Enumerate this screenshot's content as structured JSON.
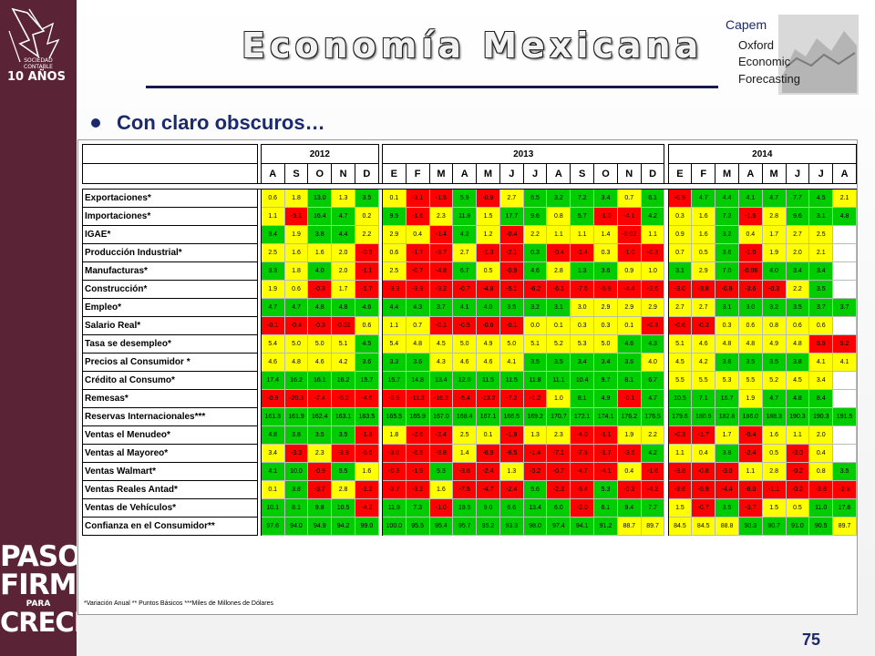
{
  "slide": {
    "title": "Economía Mexicana",
    "bullet": "Con claro obscuros…",
    "page_number": "75",
    "footnote": "*Variación Anual ** Puntos Básicos ***Miles de Millones de Dólares"
  },
  "sidebar": {
    "top_logo_text": [
      "SOCIEDAD",
      "CONTABLE",
      "10 AÑOS"
    ],
    "brand_lines": [
      "PASOS",
      "FIRMES",
      "PARA",
      "CRECER"
    ]
  },
  "partner_logo": {
    "lines": [
      "Capem",
      "Oxford",
      "Economic",
      "Forecasting"
    ]
  },
  "colors": {
    "green": "#00cc00",
    "yellow": "#ffff00",
    "red": "#ff0000",
    "sidebar": "#5a2436",
    "title_text": "#1a2a6c"
  },
  "table": {
    "years": [
      {
        "label": "2012",
        "span": 5
      },
      {
        "label": "2013",
        "span": 12
      },
      {
        "label": "2014",
        "span": 8
      }
    ],
    "months_2012": [
      "A",
      "S",
      "O",
      "N",
      "D"
    ],
    "months_2013": [
      "E",
      "F",
      "M",
      "A",
      "M",
      "J",
      "J",
      "A",
      "S",
      "O",
      "N",
      "D"
    ],
    "months_2014": [
      "E",
      "F",
      "M",
      "A",
      "M",
      "J",
      "J",
      "A"
    ],
    "rows": [
      {
        "label": "Exportaciones*",
        "values": [
          "0.6",
          "1.8",
          "13.0",
          "1.3",
          "3.5",
          "0.1",
          "-3.1",
          "-1.5",
          "5.9",
          "-0.9",
          "2.7",
          "6.5",
          "3.2",
          "7.2",
          "3.4",
          "0.7",
          "6.1",
          "-0.9",
          "4.7",
          "4.4",
          "4.1",
          "4.7",
          "7.7",
          "4.5",
          "2.1"
        ],
        "colors": [
          "y",
          "y",
          "g",
          "y",
          "g",
          "y",
          "r",
          "r",
          "g",
          "r",
          "y",
          "g",
          "g",
          "g",
          "g",
          "y",
          "g",
          "r",
          "g",
          "g",
          "g",
          "g",
          "g",
          "g",
          "y"
        ]
      },
      {
        "label": "Importaciones*",
        "values": [
          "1.1",
          "-5.1",
          "16.4",
          "4.7",
          "0.2",
          "9.5",
          "-1.6",
          "2.3",
          "11.8",
          "1.5",
          "17.7",
          "9.6",
          "0.8",
          "5.7",
          "-1.0",
          "-4.1",
          "4.2",
          "0.3",
          "1.6",
          "7.2",
          "-1.5",
          "2.8",
          "9.6",
          "3.1",
          "4.8"
        ],
        "colors": [
          "y",
          "r",
          "g",
          "g",
          "y",
          "g",
          "r",
          "y",
          "g",
          "y",
          "g",
          "g",
          "y",
          "g",
          "r",
          "r",
          "g",
          "y",
          "y",
          "g",
          "r",
          "y",
          "g",
          "g",
          "g"
        ]
      },
      {
        "label": "IGAE*",
        "values": [
          "3.4",
          "1.9",
          "3.8",
          "4.4",
          "2.2",
          "2.9",
          "0.4",
          "-1.4",
          "4.2",
          "1.2",
          "-0.4",
          "2.2",
          "1.1",
          "1.1",
          "1.4",
          "-0.02",
          "1.1",
          "0.9",
          "1.6",
          "3.2",
          "0.4",
          "1.7",
          "2.7",
          "2.5",
          ""
        ],
        "colors": [
          "g",
          "y",
          "g",
          "g",
          "y",
          "y",
          "y",
          "r",
          "g",
          "y",
          "r",
          "y",
          "y",
          "y",
          "y",
          "r",
          "y",
          "y",
          "y",
          "g",
          "y",
          "y",
          "y",
          "y",
          "w"
        ]
      },
      {
        "label": "Producción Industrial*",
        "values": [
          "2.5",
          "1.6",
          "1.6",
          "2.0",
          "-0.9",
          "0.6",
          "-1.7",
          "-3.7",
          "2.7",
          "-1.3",
          "-2.1",
          "0.3",
          "-0.4",
          "-1.4",
          "0.3",
          "-1.0",
          "-0.3",
          "0.7",
          "0.5",
          "3.6",
          "-1.0",
          "1.9",
          "2.0",
          "2.1",
          ""
        ],
        "colors": [
          "y",
          "y",
          "y",
          "y",
          "r",
          "y",
          "r",
          "r",
          "y",
          "r",
          "r",
          "g",
          "r",
          "r",
          "y",
          "r",
          "r",
          "y",
          "y",
          "g",
          "r",
          "y",
          "y",
          "y",
          "w"
        ]
      },
      {
        "label": "Manufacturas*",
        "values": [
          "3.3",
          "1.8",
          "4.0",
          "2.0",
          "-1.1",
          "2.5",
          "-0.7",
          "-4.8",
          "6.7",
          "0.5",
          "-0.9",
          "4.6",
          "2.8",
          "1.3",
          "3.6",
          "0.9",
          "1.0",
          "3.1",
          "2.9",
          "7.0",
          "-0.06",
          "4.0",
          "3.4",
          "3.4",
          ""
        ],
        "colors": [
          "g",
          "y",
          "g",
          "y",
          "r",
          "y",
          "r",
          "r",
          "g",
          "y",
          "r",
          "g",
          "y",
          "g",
          "g",
          "y",
          "y",
          "g",
          "y",
          "g",
          "r",
          "g",
          "g",
          "g",
          "w"
        ]
      },
      {
        "label": "Construcción*",
        "values": [
          "1.9",
          "0.6",
          "-0.3",
          "1.7",
          "-1.7",
          "-3.3",
          "-3.3",
          "-3.2",
          "-0.7",
          "-4.8",
          "-5.1",
          "-6.2",
          "-6.1",
          "-7.6",
          "-5.9",
          "-4.4",
          "-2.5",
          "-3.0",
          "-3.8",
          "-0.9",
          "-3.6",
          "-0.3",
          "2.2",
          "3.5",
          ""
        ],
        "colors": [
          "y",
          "y",
          "r",
          "y",
          "r",
          "r",
          "r",
          "r",
          "r",
          "r",
          "r",
          "r",
          "r",
          "r",
          "r",
          "r",
          "r",
          "r",
          "r",
          "r",
          "r",
          "r",
          "y",
          "g",
          "w"
        ]
      },
      {
        "label": "Empleo*",
        "values": [
          "4.7",
          "4.7",
          "4.8",
          "4.8",
          "4.6",
          "4.4",
          "4.3",
          "3.7",
          "4.1",
          "4.0",
          "3.5",
          "3.2",
          "3.1",
          "3.0",
          "2.9",
          "2.9",
          "2.9",
          "2.7",
          "2.7",
          "3.1",
          "3.0",
          "3.2",
          "3.5",
          "3.7",
          "3.7"
        ],
        "colors": [
          "g",
          "g",
          "g",
          "g",
          "g",
          "g",
          "g",
          "g",
          "g",
          "g",
          "g",
          "g",
          "g",
          "y",
          "y",
          "y",
          "y",
          "y",
          "y",
          "g",
          "g",
          "g",
          "g",
          "g",
          "g"
        ]
      },
      {
        "label": "Salario Real*",
        "values": [
          "-0.1",
          "-0.4",
          "-0.3",
          "-0.02",
          "0.6",
          "1.1",
          "0.7",
          "-0.1",
          "-0.5",
          "-0.6",
          "-0.1",
          "0.0",
          "0.1",
          "0.3",
          "0.3",
          "0.1",
          "-0.3",
          "-0.6",
          "-0.3",
          "0.3",
          "0.6",
          "0.8",
          "0.6",
          "0.6",
          ""
        ],
        "colors": [
          "r",
          "r",
          "r",
          "r",
          "y",
          "y",
          "y",
          "r",
          "r",
          "r",
          "r",
          "y",
          "y",
          "y",
          "y",
          "y",
          "r",
          "r",
          "r",
          "y",
          "y",
          "y",
          "y",
          "y",
          "w"
        ]
      },
      {
        "label": "Tasa se desempleo*",
        "values": [
          "5.4",
          "5.0",
          "5.0",
          "5.1",
          "4.5",
          "5.4",
          "4.8",
          "4.5",
          "5.0",
          "4.9",
          "5.0",
          "5.1",
          "5.2",
          "5.3",
          "5.0",
          "4.6",
          "4.3",
          "5.1",
          "4.6",
          "4.8",
          "4.8",
          "4.9",
          "4.8",
          "5.5",
          "5.2"
        ],
        "colors": [
          "y",
          "y",
          "y",
          "y",
          "g",
          "y",
          "y",
          "y",
          "y",
          "y",
          "y",
          "y",
          "y",
          "y",
          "y",
          "g",
          "g",
          "y",
          "y",
          "y",
          "y",
          "y",
          "y",
          "r",
          "r"
        ]
      },
      {
        "label": "Precios al Consumidor *",
        "values": [
          "4.6",
          "4.8",
          "4.6",
          "4.2",
          "3.6",
          "3.3",
          "3.6",
          "4.3",
          "4.6",
          "4.6",
          "4.1",
          "3.5",
          "3.5",
          "3.4",
          "3.4",
          "3.6",
          "4.0",
          "4.5",
          "4.2",
          "3.8",
          "3.5",
          "3.5",
          "3.8",
          "4.1",
          "4.1"
        ],
        "colors": [
          "y",
          "y",
          "y",
          "y",
          "g",
          "g",
          "g",
          "y",
          "y",
          "y",
          "y",
          "g",
          "g",
          "g",
          "g",
          "g",
          "y",
          "y",
          "y",
          "g",
          "g",
          "g",
          "g",
          "y",
          "y"
        ]
      },
      {
        "label": "Crédito al Consumo*",
        "values": [
          "17.4",
          "16.2",
          "16.1",
          "16.2",
          "15.7",
          "15.7",
          "14.8",
          "13.4",
          "12.0",
          "11.5",
          "11.5",
          "11.8",
          "11.1",
          "10.4",
          "9.7",
          "8.1",
          "6.7",
          "5.5",
          "5.5",
          "5.3",
          "5.5",
          "5.2",
          "4.5",
          "3.4",
          ""
        ],
        "colors": [
          "g",
          "g",
          "g",
          "g",
          "g",
          "g",
          "g",
          "g",
          "g",
          "g",
          "g",
          "g",
          "g",
          "g",
          "g",
          "g",
          "g",
          "y",
          "y",
          "y",
          "y",
          "y",
          "y",
          "y",
          "w"
        ]
      },
      {
        "label": "Remesas*",
        "values": [
          "-0.9",
          "-20.3",
          "-7.4",
          "-5.2",
          "-4.6",
          "-2.9",
          "-11.2",
          "-16.2",
          "-5.4",
          "-13.2",
          "-7.2",
          "-1.2",
          "1.0",
          "8.1",
          "4.9",
          "-0.1",
          "4.7",
          "10.5",
          "7.1",
          "16.7",
          "1.9",
          "4.7",
          "4.8",
          "8.4",
          ""
        ],
        "colors": [
          "r",
          "r",
          "r",
          "r",
          "r",
          "r",
          "r",
          "r",
          "r",
          "r",
          "r",
          "r",
          "y",
          "g",
          "g",
          "r",
          "g",
          "g",
          "g",
          "g",
          "y",
          "g",
          "g",
          "g",
          "w"
        ]
      },
      {
        "label": "Reservas Internacionales***",
        "values": [
          "161.3",
          "161.9",
          "162.4",
          "163.1",
          "163.5",
          "165.5",
          "165.9",
          "167.0",
          "168.4",
          "167.1",
          "166.5",
          "169.2",
          "170.7",
          "172.1",
          "174.1",
          "176.2",
          "176.5",
          "179.6",
          "180.9",
          "182.8",
          "186.0",
          "188.3",
          "190.3",
          "190.3",
          "191.5"
        ],
        "colors": [
          "g",
          "g",
          "g",
          "g",
          "g",
          "g",
          "g",
          "g",
          "g",
          "g",
          "g",
          "g",
          "g",
          "g",
          "g",
          "g",
          "g",
          "g",
          "g",
          "g",
          "g",
          "g",
          "g",
          "g",
          "g"
        ]
      },
      {
        "label": "Ventas el Menudeo*",
        "values": [
          "4.8",
          "3.8",
          "3.5",
          "3.5",
          "-1.8",
          "1.8",
          "-2.6",
          "-2.4",
          "2.5",
          "0.1",
          "-1.9",
          "1.3",
          "2.3",
          "-4.0",
          "-1.1",
          "1.9",
          "2.2",
          "-0.3",
          "-1.7",
          "1.7",
          "-0.4",
          "1.6",
          "1.1",
          "2.0",
          ""
        ],
        "colors": [
          "g",
          "g",
          "g",
          "g",
          "r",
          "y",
          "r",
          "r",
          "y",
          "y",
          "r",
          "y",
          "y",
          "r",
          "r",
          "y",
          "y",
          "r",
          "r",
          "y",
          "r",
          "y",
          "y",
          "y",
          "w"
        ]
      },
      {
        "label": "Ventas al Mayoreo*",
        "values": [
          "3.4",
          "-3.3",
          "2.3",
          "-3.9",
          "-6.6",
          "-3.0",
          "-6.5",
          "-9.8",
          "1.4",
          "-6.9",
          "-6.5",
          "-1.4",
          "-7.1",
          "-7.3",
          "-1.7",
          "-3.5",
          "4.2",
          "1.1",
          "0.4",
          "3.8",
          "-2.4",
          "0.5",
          "-3.0",
          "0.4",
          ""
        ],
        "colors": [
          "y",
          "r",
          "y",
          "r",
          "r",
          "r",
          "r",
          "r",
          "y",
          "r",
          "r",
          "r",
          "r",
          "r",
          "r",
          "r",
          "g",
          "y",
          "y",
          "g",
          "r",
          "y",
          "r",
          "y",
          "w"
        ]
      },
      {
        "label": "Ventas Walmart*",
        "values": [
          "4.1",
          "10.0",
          "-0.9",
          "5.5",
          "1.6",
          "-0.3",
          "-1.9",
          "5.3",
          "-3.6",
          "-2.4",
          "1.3",
          "-3.2",
          "-0.7",
          "-4.7",
          "-4.1",
          "0.4",
          "-1.6",
          "-3.8",
          "-0.8",
          "-3.0",
          "1.1",
          "2.8",
          "-0.2",
          "0.8",
          "3.5"
        ],
        "colors": [
          "g",
          "g",
          "r",
          "g",
          "y",
          "r",
          "r",
          "g",
          "r",
          "r",
          "y",
          "r",
          "r",
          "r",
          "r",
          "y",
          "r",
          "r",
          "r",
          "r",
          "y",
          "y",
          "r",
          "y",
          "g"
        ]
      },
      {
        "label": "Ventas Reales Antad*",
        "values": [
          "0.1",
          "3.8",
          "-3.7",
          "2.8",
          "-1.2",
          "-2.7",
          "-3.2",
          "1.6",
          "-7.5",
          "-4.7",
          "-2.4",
          "5.6",
          "-2.3",
          "-5.4",
          "5.3",
          "-0.3",
          "-4.2",
          "-3.6",
          "-5.9",
          "-4.4",
          "-6.0",
          "-1.1",
          "-0.2",
          "-3.8",
          "-2.8"
        ],
        "colors": [
          "y",
          "g",
          "r",
          "y",
          "r",
          "r",
          "r",
          "y",
          "r",
          "r",
          "r",
          "g",
          "r",
          "r",
          "g",
          "r",
          "r",
          "r",
          "r",
          "r",
          "r",
          "r",
          "r",
          "r",
          "r"
        ]
      },
      {
        "label": "Ventas de Vehículos*",
        "values": [
          "10.1",
          "8.1",
          "9.8",
          "10.5",
          "-4.2",
          "11.9",
          "7.3",
          "-1.0",
          "19.5",
          "9.0",
          "6.6",
          "13.4",
          "6.0",
          "-2.0",
          "6.1",
          "9.4",
          "7.7",
          "1.5",
          "-0.7",
          "3.5",
          "-3.7",
          "1.5",
          "0.5",
          "11.0",
          "17.6"
        ],
        "colors": [
          "g",
          "g",
          "g",
          "g",
          "r",
          "g",
          "g",
          "r",
          "g",
          "g",
          "g",
          "g",
          "g",
          "r",
          "g",
          "g",
          "g",
          "y",
          "r",
          "g",
          "r",
          "y",
          "y",
          "g",
          "g"
        ]
      },
      {
        "label": "Confianza en el Consumidor**",
        "values": [
          "97.6",
          "94.0",
          "94.9",
          "94.2",
          "99.0",
          "100.0",
          "95.5",
          "95.4",
          "95.7",
          "95.2",
          "93.3",
          "98.0",
          "97.4",
          "94.1",
          "91.2",
          "88.7",
          "89.7",
          "84.5",
          "84.5",
          "88.8",
          "90.3",
          "90.7",
          "91.0",
          "90.5",
          "89.7"
        ],
        "colors": [
          "g",
          "g",
          "g",
          "g",
          "g",
          "g",
          "g",
          "g",
          "g",
          "g",
          "g",
          "g",
          "g",
          "g",
          "g",
          "y",
          "y",
          "y",
          "y",
          "y",
          "g",
          "g",
          "g",
          "g",
          "y"
        ]
      }
    ]
  }
}
